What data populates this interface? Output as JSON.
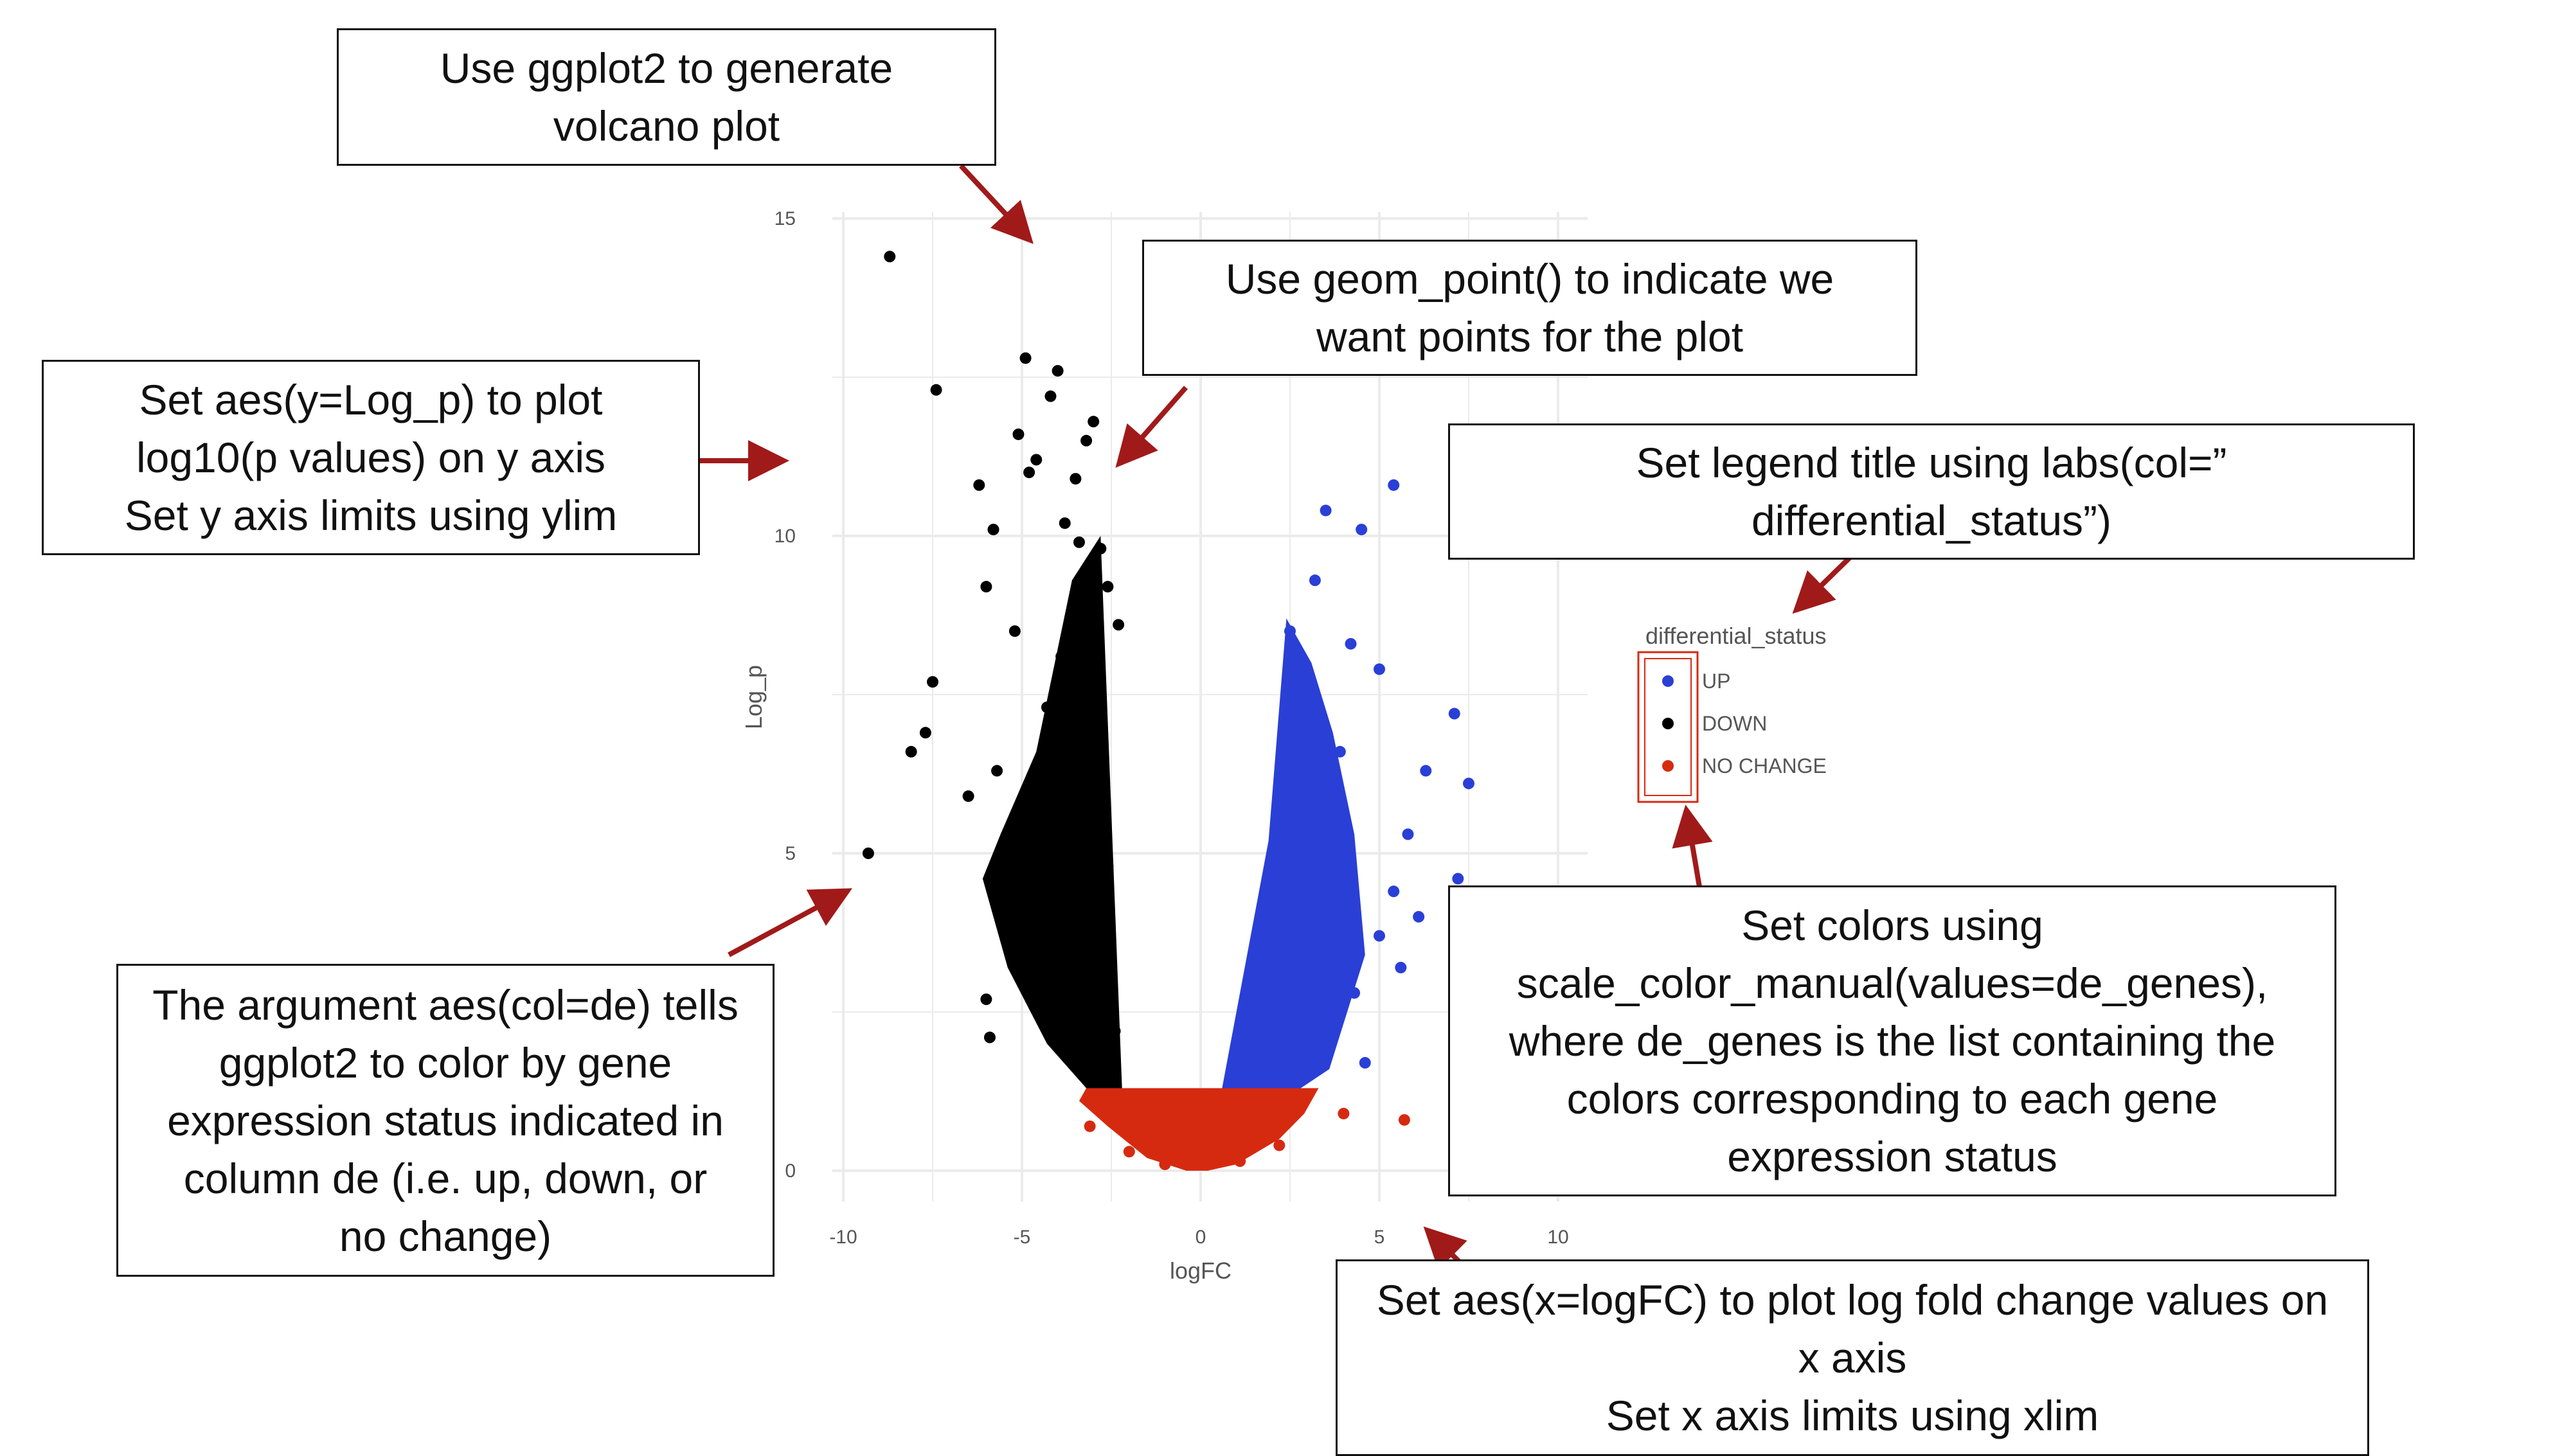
{
  "chart_data": {
    "type": "scatter",
    "title": "",
    "xlabel": "logFC",
    "ylabel": "Log_p",
    "xlim": [
      -10.5,
      10.5
    ],
    "ylim": [
      0,
      15
    ],
    "x_ticks": [
      -10,
      -5,
      0,
      5,
      10
    ],
    "y_ticks": [
      0,
      5,
      10,
      15
    ],
    "grid": true,
    "legend": {
      "title": "differential_status",
      "placement": "right",
      "entries": [
        {
          "label": "UP",
          "color": "#2a3fd6"
        },
        {
          "label": "DOWN",
          "color": "#000000"
        },
        {
          "label": "NO CHANGE",
          "color": "#d62a10"
        }
      ]
    },
    "series": [
      {
        "name": "DOWN",
        "color": "#000000",
        "points": [
          [
            -8.7,
            14.4
          ],
          [
            -4.9,
            12.8
          ],
          [
            -4.0,
            12.6
          ],
          [
            -4.2,
            12.2
          ],
          [
            -7.4,
            12.3
          ],
          [
            -5.1,
            11.6
          ],
          [
            -4.8,
            11.0
          ],
          [
            -4.6,
            11.2
          ],
          [
            -3.0,
            11.8
          ],
          [
            -3.2,
            11.5
          ],
          [
            -3.5,
            10.9
          ],
          [
            -6.2,
            10.8
          ],
          [
            -5.8,
            10.1
          ],
          [
            -3.8,
            10.2
          ],
          [
            -3.4,
            9.9
          ],
          [
            -6.0,
            9.2
          ],
          [
            -5.2,
            8.5
          ],
          [
            -7.5,
            7.7
          ],
          [
            -7.7,
            6.9
          ],
          [
            -8.1,
            6.6
          ],
          [
            -9.3,
            5.0
          ],
          [
            -6.5,
            5.9
          ],
          [
            -5.7,
            6.3
          ],
          [
            -4.3,
            7.3
          ],
          [
            -3.9,
            8.1
          ],
          [
            -2.9,
            6.5
          ],
          [
            -2.6,
            4.8
          ],
          [
            -3.3,
            3.8
          ],
          [
            -6.0,
            2.7
          ],
          [
            -5.9,
            2.1
          ],
          [
            -4.4,
            2.9
          ],
          [
            -2.4,
            2.2
          ],
          [
            -2.8,
            9.8
          ],
          [
            -2.6,
            9.2
          ],
          [
            -2.3,
            8.6
          ]
        ]
      },
      {
        "name": "UP",
        "color": "#2a3fd6",
        "points": [
          [
            5.4,
            10.8
          ],
          [
            3.5,
            10.4
          ],
          [
            4.5,
            10.1
          ],
          [
            3.2,
            9.3
          ],
          [
            2.5,
            8.5
          ],
          [
            4.2,
            8.3
          ],
          [
            5.0,
            7.9
          ],
          [
            7.1,
            7.2
          ],
          [
            6.3,
            6.3
          ],
          [
            7.5,
            6.1
          ],
          [
            5.8,
            5.3
          ],
          [
            7.2,
            4.6
          ],
          [
            5.4,
            4.4
          ],
          [
            6.1,
            4.0
          ],
          [
            5.0,
            3.7
          ],
          [
            5.6,
            3.2
          ],
          [
            4.3,
            2.8
          ],
          [
            3.4,
            2.4
          ],
          [
            4.6,
            1.7
          ],
          [
            3.0,
            5.9
          ],
          [
            2.2,
            4.2
          ],
          [
            2.7,
            7.1
          ],
          [
            3.9,
            6.6
          ]
        ]
      },
      {
        "name": "NO CHANGE",
        "color": "#d62a10",
        "points": [
          [
            5.7,
            0.8
          ],
          [
            -3.1,
            0.7
          ],
          [
            4.0,
            0.9
          ],
          [
            -2.0,
            0.3
          ],
          [
            2.2,
            0.4
          ],
          [
            -1.0,
            0.1
          ],
          [
            1.1,
            0.15
          ]
        ]
      }
    ]
  },
  "annotations": [
    {
      "id": "ggplot",
      "lines": [
        "Use ggplot2 to generate",
        "volcano plot"
      ]
    },
    {
      "id": "geom-point",
      "lines": [
        "Use geom_point() to indicate we",
        "want points for the plot"
      ]
    },
    {
      "id": "y-aes",
      "lines": [
        "Set aes(y=Log_p) to plot",
        "log10(p values) on y axis",
        "Set y axis limits using ylim"
      ]
    },
    {
      "id": "legend-title",
      "lines": [
        "Set legend title using labs(col=”",
        "differential_status”)"
      ]
    },
    {
      "id": "color-aes",
      "lines": [
        "The argument aes(col=de) tells",
        "ggplot2 to color by gene",
        "expression status indicated in",
        "column de (i.e. up, down, or",
        "no change)"
      ]
    },
    {
      "id": "colors",
      "lines": [
        "Set colors using",
        "scale_color_manual(values=de_genes),",
        "where de_genes is the list containing the",
        "colors corresponding to each gene",
        "expression status"
      ]
    },
    {
      "id": "x-aes",
      "lines": [
        "Set aes(x=logFC) to plot log fold change values on",
        "x axis",
        "Set x axis limits using xlim"
      ]
    }
  ],
  "colors": {
    "arrow": "#a11a1a",
    "grid": "#ebebeb",
    "legend_box": "#d62a10"
  }
}
